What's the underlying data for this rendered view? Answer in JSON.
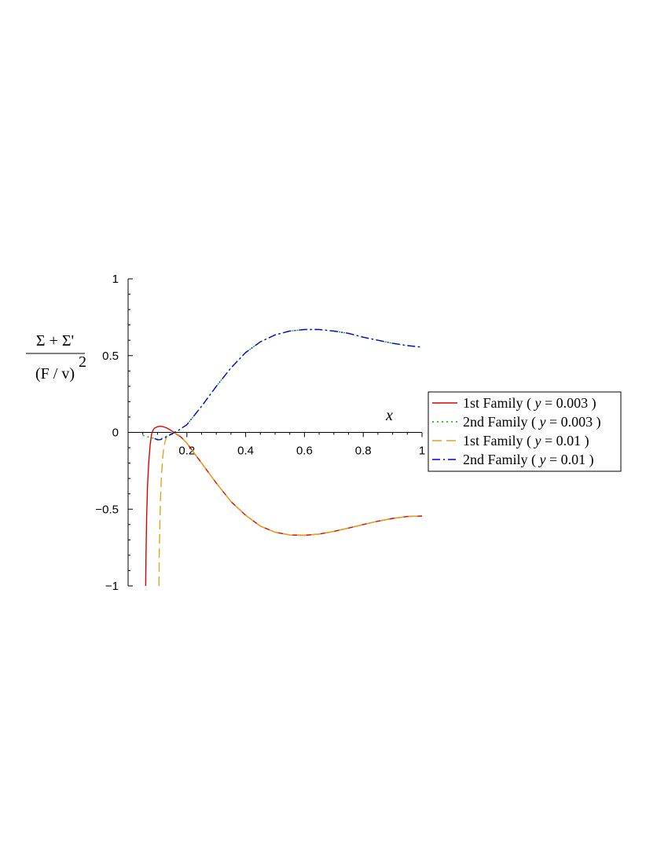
{
  "chart_data": {
    "type": "line",
    "xlabel": "x",
    "ylabel": {
      "numerator": "Σ + Σ'",
      "denominator": "(F / v)",
      "exponent": "2"
    },
    "xlim": [
      0,
      1
    ],
    "ylim": [
      -1,
      1
    ],
    "xticks": [
      {
        "value": 0.2,
        "label": "0.2"
      },
      {
        "value": 0.4,
        "label": "0.4"
      },
      {
        "value": 0.6,
        "label": "0.6"
      },
      {
        "value": 0.8,
        "label": "0.8"
      },
      {
        "value": 1.0,
        "label": "1"
      }
    ],
    "yticks": [
      {
        "value": 1,
        "label": "1"
      },
      {
        "value": 0.5,
        "label": "0.5"
      },
      {
        "value": 0,
        "label": "0"
      },
      {
        "value": -0.5,
        "label": "−0.5"
      },
      {
        "value": -1,
        "label": "−1"
      }
    ],
    "grid": false,
    "legend_position": "right",
    "series": [
      {
        "name": "1st Family ( y = 0.003 )",
        "legend_prefix": "1st Family (",
        "legend_var": "y",
        "legend_value": "= 0.003 )",
        "color": "#e00000",
        "dash": "solid",
        "x": [
          0.06,
          0.061,
          0.063,
          0.066,
          0.07,
          0.075,
          0.08,
          0.085,
          0.09,
          0.1,
          0.11,
          0.12,
          0.13,
          0.14,
          0.15,
          0.16,
          0.17,
          0.18,
          0.2,
          0.25,
          0.3,
          0.35,
          0.4,
          0.45,
          0.5,
          0.55,
          0.6,
          0.65,
          0.7,
          0.75,
          0.8,
          0.85,
          0.9,
          0.95,
          1.0
        ],
        "y": [
          -1.0,
          -0.8,
          -0.55,
          -0.35,
          -0.2,
          -0.08,
          -0.01,
          0.015,
          0.028,
          0.037,
          0.04,
          0.037,
          0.03,
          0.02,
          0.008,
          -0.005,
          -0.018,
          -0.03,
          -0.07,
          -0.2,
          -0.33,
          -0.45,
          -0.54,
          -0.61,
          -0.65,
          -0.668,
          -0.67,
          -0.662,
          -0.645,
          -0.623,
          -0.6,
          -0.578,
          -0.56,
          -0.548,
          -0.545
        ]
      },
      {
        "name": "2nd Family ( y = 0.003 )",
        "legend_prefix": "2nd Family (",
        "legend_var": "y",
        "legend_value": "= 0.003 )",
        "color": "#00b000",
        "dash": "dotted",
        "x": [
          0.05,
          0.07,
          0.09,
          0.1,
          0.11,
          0.12,
          0.13,
          0.15,
          0.17,
          0.2,
          0.25,
          0.3,
          0.35,
          0.4,
          0.45,
          0.5,
          0.55,
          0.6,
          0.65,
          0.7,
          0.75,
          0.8,
          0.85,
          0.9,
          0.95,
          1.0
        ],
        "y": [
          -0.02,
          -0.03,
          -0.04,
          -0.045,
          -0.043,
          -0.036,
          -0.025,
          -0.006,
          0.012,
          0.05,
          0.17,
          0.3,
          0.42,
          0.52,
          0.59,
          0.635,
          0.66,
          0.67,
          0.67,
          0.66,
          0.645,
          0.62,
          0.6,
          0.58,
          0.565,
          0.555
        ]
      },
      {
        "name": "1st Family ( y = 0.01 )",
        "legend_prefix": "1st Family (",
        "legend_var": "y",
        "legend_value": "= 0.01 )",
        "color": "#e3a41b",
        "dash": "dashed",
        "x": [
          0.105,
          0.106,
          0.108,
          0.11,
          0.113,
          0.117,
          0.12,
          0.125,
          0.13,
          0.135,
          0.14,
          0.15,
          0.16,
          0.17,
          0.18,
          0.2,
          0.25,
          0.3,
          0.35,
          0.4,
          0.45,
          0.5,
          0.55,
          0.6,
          0.65,
          0.7,
          0.75,
          0.8,
          0.85,
          0.9,
          0.95,
          1.0
        ],
        "y": [
          -1.0,
          -0.8,
          -0.6,
          -0.45,
          -0.3,
          -0.18,
          -0.12,
          -0.065,
          -0.035,
          -0.018,
          -0.008,
          0.0,
          -0.004,
          -0.015,
          -0.028,
          -0.07,
          -0.2,
          -0.33,
          -0.45,
          -0.54,
          -0.61,
          -0.65,
          -0.668,
          -0.67,
          -0.662,
          -0.645,
          -0.623,
          -0.6,
          -0.578,
          -0.56,
          -0.548,
          -0.545
        ]
      },
      {
        "name": "2nd Family ( y = 0.01 )",
        "legend_prefix": "2nd Family (",
        "legend_var": "y",
        "legend_value": "= 0.01 )",
        "color": "#0000dd",
        "dash": "dashdot",
        "x": [
          0.09,
          0.1,
          0.11,
          0.12,
          0.13,
          0.15,
          0.17,
          0.2,
          0.25,
          0.3,
          0.35,
          0.4,
          0.45,
          0.5,
          0.55,
          0.6,
          0.65,
          0.7,
          0.75,
          0.8,
          0.85,
          0.9,
          0.95,
          1.0
        ],
        "y": [
          -0.04,
          -0.048,
          -0.047,
          -0.04,
          -0.03,
          -0.008,
          0.012,
          0.05,
          0.17,
          0.3,
          0.42,
          0.52,
          0.59,
          0.635,
          0.66,
          0.67,
          0.67,
          0.66,
          0.645,
          0.62,
          0.6,
          0.58,
          0.565,
          0.555
        ]
      }
    ]
  }
}
